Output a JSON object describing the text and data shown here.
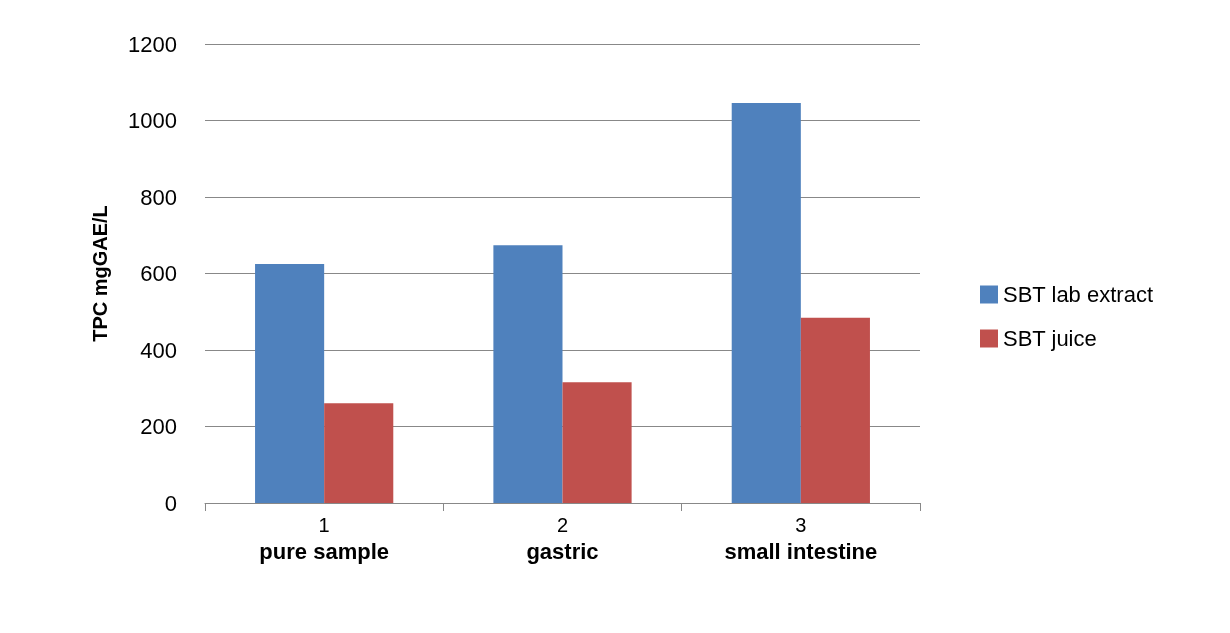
{
  "chart_data": {
    "type": "bar",
    "ylabel": "TPC mgGAE/L",
    "categories": [
      "1",
      "2",
      "3"
    ],
    "series": [
      {
        "name": "SBT lab extract",
        "color": "#4f81bd",
        "values": [
          625,
          674,
          1046
        ]
      },
      {
        "name": "SBT juice",
        "color": "#c0504d",
        "values": [
          261,
          316,
          484
        ]
      }
    ],
    "ylim": [
      0,
      1200
    ],
    "yticks": [
      0,
      200,
      400,
      600,
      800,
      1000,
      1200
    ],
    "grid": "y",
    "legend": "right",
    "annotations": [
      "pure sample",
      "gastric",
      "small intestine"
    ]
  }
}
